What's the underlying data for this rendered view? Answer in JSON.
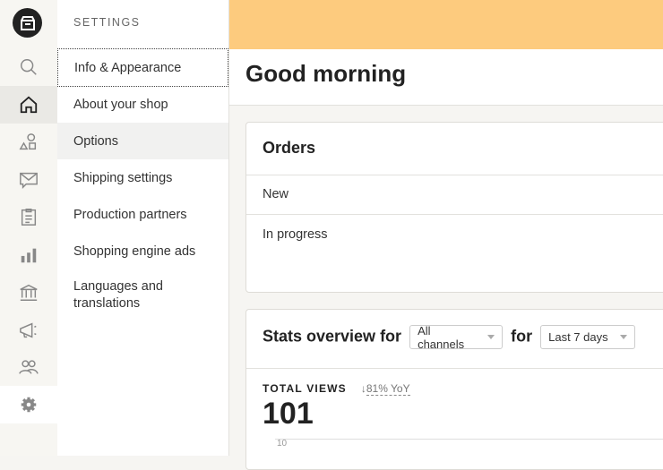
{
  "rail": {
    "items": [
      "store-logo",
      "search",
      "home",
      "listings",
      "messages",
      "orders",
      "stats",
      "finances",
      "marketing",
      "community",
      "settings"
    ],
    "active": "home",
    "selected": "settings"
  },
  "settings": {
    "heading": "SETTINGS",
    "items": [
      {
        "label": "Info & Appearance"
      },
      {
        "label": "About your shop"
      },
      {
        "label": "Options"
      },
      {
        "label": "Shipping settings"
      },
      {
        "label": "Production partners"
      },
      {
        "label": "Shopping engine ads"
      },
      {
        "label": "Languages and translations"
      }
    ]
  },
  "main": {
    "banner_color": "#fdcb7e",
    "greeting": "Good morning",
    "orders": {
      "title": "Orders",
      "rows": [
        "New",
        "In progress"
      ]
    },
    "stats": {
      "title": "Stats overview for",
      "channel": "All channels",
      "for": "for",
      "period": "Last 7 days",
      "metric_label": "TOTAL VIEWS",
      "yoy": "81% YoY",
      "value": "101",
      "axis_tick": "10"
    }
  }
}
